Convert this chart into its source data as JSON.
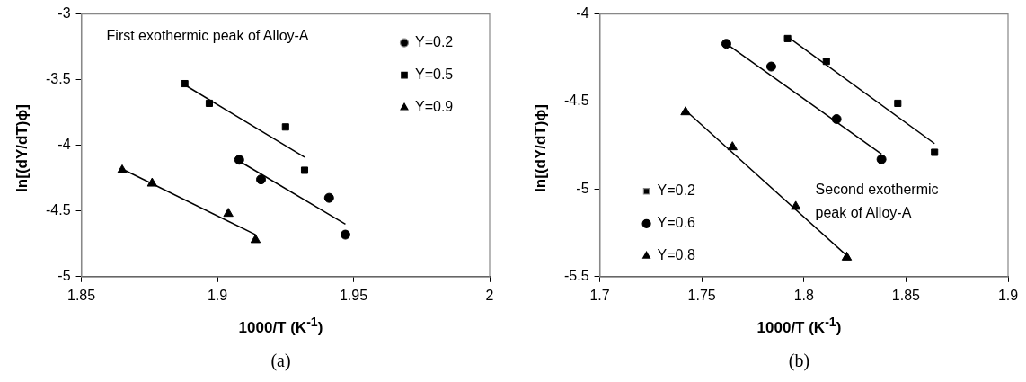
{
  "chart_data": [
    {
      "type": "scatter",
      "xlabel": "1000/T (K$^{-1}$)",
      "ylabel": "ln[(dY/dT)ϕ]",
      "xlim": [
        1.85,
        2
      ],
      "xticks": [
        1.85,
        1.9,
        1.95,
        2
      ],
      "ylim": [
        -5,
        -3
      ],
      "yticks": [
        -5,
        -4.5,
        -4,
        -3.5,
        -3
      ],
      "grid": false,
      "legend": "top right",
      "annotations": [
        "First exothermic peak of Alloy-A",
        "(a)"
      ],
      "series": [
        {
          "name": "Y=0.2",
          "color": "#000000",
          "marker": "circle",
          "x": [
            1.908,
            1.916,
            1.941,
            1.947
          ],
          "values": [
            -4.11,
            -4.26,
            -4.4,
            -4.68
          ]
        },
        {
          "name": "Y=0.5",
          "color": "#000000",
          "marker": "square",
          "x": [
            1.888,
            1.897,
            1.925,
            1.932
          ],
          "values": [
            -3.53,
            -3.68,
            -3.86,
            -4.19
          ]
        },
        {
          "name": "Y=0.9",
          "color": "#000000",
          "marker": "triangle",
          "x": [
            1.865,
            1.876,
            1.904,
            1.914
          ],
          "values": [
            -4.19,
            -4.29,
            -4.52,
            -4.72
          ]
        },
        {
          "type": "line",
          "color": "#000000",
          "marker": "none",
          "x": [
            1.908,
            1.947
          ],
          "values": [
            -4.12,
            -4.6
          ]
        },
        {
          "type": "line",
          "color": "#000000",
          "marker": "none",
          "x": [
            1.888,
            1.932
          ],
          "values": [
            -3.54,
            -4.09
          ]
        },
        {
          "type": "line",
          "color": "#000000",
          "marker": "none",
          "x": [
            1.865,
            1.914
          ],
          "values": [
            -4.18,
            -4.68
          ]
        }
      ]
    },
    {
      "type": "scatter",
      "xlabel": "1000/T (K$^{-1}$)",
      "ylabel": "ln[(dY/dT)ϕ]",
      "xlim": [
        1.7,
        1.9
      ],
      "xticks": [
        1.7,
        1.75,
        1.8,
        1.85,
        1.9
      ],
      "ylim": [
        -5.5,
        -4
      ],
      "yticks": [
        -5.5,
        -5,
        -4.5,
        -4
      ],
      "grid": false,
      "legend": "bottom left",
      "annotations": [
        "Second exothermic peak of Alloy-A",
        "(b)"
      ],
      "series": [
        {
          "name": "Y=0.2",
          "color": "#000000",
          "marker": "square",
          "x": [
            1.792,
            1.811,
            1.846,
            1.864
          ],
          "values": [
            -4.14,
            -4.27,
            -4.51,
            -4.79
          ]
        },
        {
          "name": "Y=0.6",
          "color": "#000000",
          "marker": "circle",
          "x": [
            1.762,
            1.784,
            1.816,
            1.838
          ],
          "values": [
            -4.17,
            -4.3,
            -4.6,
            -4.83
          ]
        },
        {
          "name": "Y=0.8",
          "color": "#000000",
          "marker": "triangle",
          "x": [
            1.742,
            1.765,
            1.796,
            1.821
          ],
          "values": [
            -4.56,
            -4.76,
            -5.1,
            -5.39
          ]
        },
        {
          "type": "line",
          "color": "#000000",
          "marker": "none",
          "x": [
            1.792,
            1.864
          ],
          "values": [
            -4.13,
            -4.74
          ]
        },
        {
          "type": "line",
          "color": "#000000",
          "marker": "none",
          "x": [
            1.762,
            1.838
          ],
          "values": [
            -4.17,
            -4.8
          ]
        },
        {
          "type": "line",
          "color": "#000000",
          "marker": "none",
          "x": [
            1.742,
            1.821
          ],
          "values": [
            -4.55,
            -5.38
          ]
        }
      ]
    }
  ]
}
